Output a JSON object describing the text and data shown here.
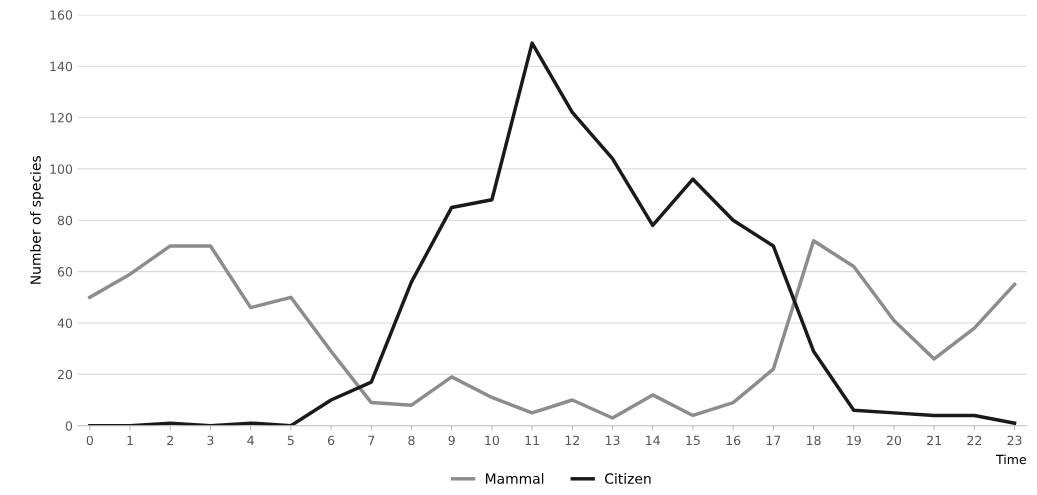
{
  "chart_data": {
    "type": "line",
    "ylabel": "Number of species",
    "xlabel": "Time",
    "categories": [
      "0",
      "1",
      "2",
      "3",
      "4",
      "5",
      "6",
      "7",
      "8",
      "9",
      "10",
      "11",
      "12",
      "13",
      "14",
      "15",
      "16",
      "17",
      "18",
      "19",
      "20",
      "21",
      "22",
      "23"
    ],
    "series": [
      {
        "name": "Mammal",
        "color": "#8c8c8c",
        "values": [
          50,
          59,
          70,
          70,
          46,
          50,
          29,
          9,
          8,
          19,
          11,
          5,
          10,
          3,
          12,
          4,
          9,
          22,
          72,
          62,
          41,
          26,
          38,
          55
        ]
      },
      {
        "name": "Citizen",
        "color": "#1a1a1a",
        "values": [
          0,
          0,
          1,
          0,
          1,
          0,
          10,
          17,
          56,
          85,
          88,
          149,
          122,
          104,
          78,
          96,
          80,
          70,
          29,
          6,
          5,
          4,
          4,
          1
        ]
      }
    ],
    "ylim": [
      0,
      160
    ],
    "yticks": [
      0,
      20,
      40,
      60,
      80,
      100,
      120,
      140,
      160
    ],
    "grid": "y",
    "legend": "bottom",
    "marker": "none",
    "line_style": "solid"
  }
}
